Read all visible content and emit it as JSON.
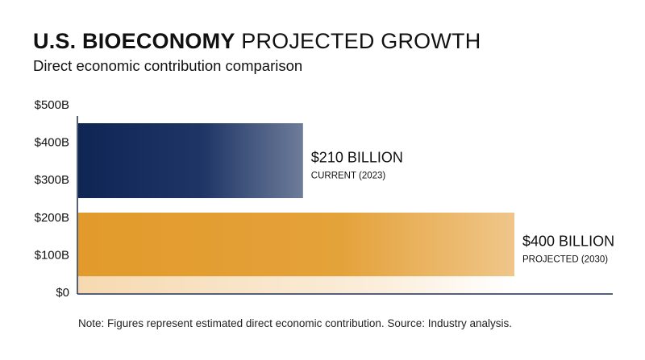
{
  "header": {
    "title_bold": "U.S. BIOECONOMY",
    "title_rest": "PROJECTED GROWTH",
    "subtitle": "Direct economic contribution comparison"
  },
  "note": "Note: Figures represent estimated direct economic contribution. Source: Industry analysis.",
  "colors": {
    "current_bar": "#0f2554",
    "projected_bar": "#e29a2b",
    "axis": "#1c2c50"
  },
  "chart_data": {
    "type": "bar",
    "orientation": "horizontal",
    "title": "U.S. BIOECONOMY PROJECTED GROWTH",
    "subtitle": "Direct economic contribution comparison",
    "y_ticks": [
      "$0",
      "$100B",
      "$200B",
      "$300B",
      "$400B",
      "$500B"
    ],
    "ylim": [
      0,
      500
    ],
    "grid": false,
    "series": [
      {
        "value_label": "$210 BILLION",
        "sub_label": "CURRENT (2023)",
        "value": 210,
        "color": "#0f2554"
      },
      {
        "value_label": "$400 BILLION",
        "sub_label": "PROJECTED (2030)",
        "value": 400,
        "color": "#e29a2b"
      }
    ]
  }
}
